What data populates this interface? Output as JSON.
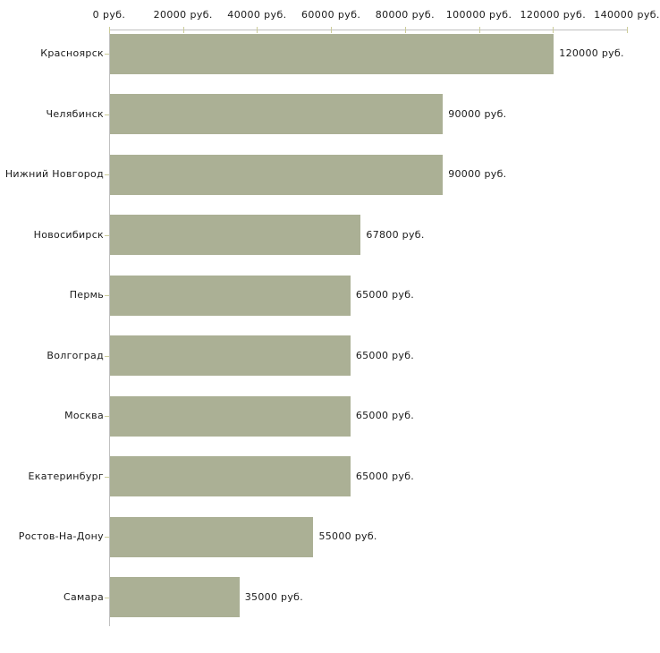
{
  "chart_data": {
    "type": "bar",
    "orientation": "horizontal",
    "title": "",
    "xlabel": "",
    "ylabel": "",
    "categories": [
      "Красноярск",
      "Челябинск",
      "Нижний Новгород",
      "Новосибирск",
      "Пермь",
      "Волгоград",
      "Москва",
      "Екатеринбург",
      "Ростов-На-Дону",
      "Самара"
    ],
    "values": [
      120000,
      90000,
      90000,
      67800,
      65000,
      65000,
      65000,
      65000,
      55000,
      35000
    ],
    "value_labels": [
      "120000 руб.",
      "90000 руб.",
      "90000 руб.",
      "67800 руб.",
      "65000 руб.",
      "65000 руб.",
      "65000 руб.",
      "65000 руб.",
      "55000 руб.",
      "35000 руб."
    ],
    "x_ticks": [
      0,
      20000,
      40000,
      60000,
      80000,
      100000,
      120000,
      140000
    ],
    "x_tick_labels": [
      "0 руб.",
      "20000 руб.",
      "40000 руб.",
      "60000 руб.",
      "80000 руб.",
      "100000 руб.",
      "120000 руб.",
      "140000 руб."
    ],
    "xlim": [
      0,
      140000
    ],
    "grid": false,
    "legend": "none",
    "unit": "руб.",
    "colors": {
      "bar": "#abb095",
      "axis": "#c0c0c0",
      "tick": "#cccc99",
      "text": "#1a1a1a",
      "background": "#ffffff"
    }
  }
}
